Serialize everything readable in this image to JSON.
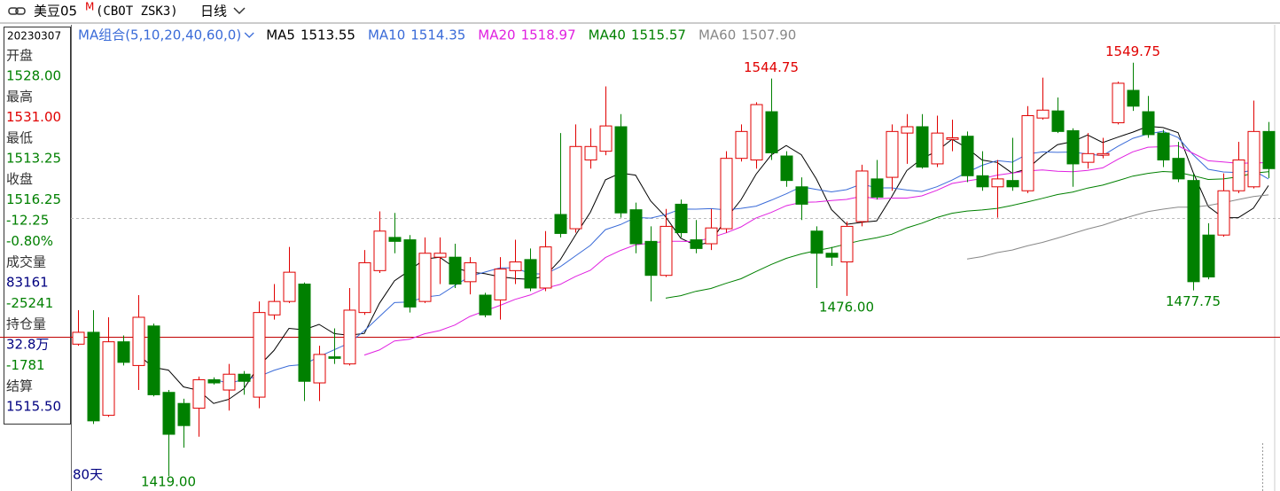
{
  "header": {
    "symbol": "美豆05",
    "marker": "M",
    "code": "(CBOT ZSK3)",
    "period": "日线"
  },
  "info": {
    "date": "20230307",
    "rows": [
      {
        "label": "开盘",
        "value": "1528.00",
        "color": "#008000"
      },
      {
        "label": "最高",
        "value": "1531.00",
        "color": "#e00000"
      },
      {
        "label": "最低",
        "value": "1513.25",
        "color": "#008000"
      },
      {
        "label": "收盘",
        "value": "1516.25",
        "color": "#008000"
      },
      {
        "value": "-12.25",
        "color": "#008000"
      },
      {
        "value": "-0.80%",
        "color": "#008000"
      },
      {
        "label": "成交量",
        "value": "83161",
        "color": "#000080"
      },
      {
        "value": "-25241",
        "color": "#008000"
      },
      {
        "label": "持仓量",
        "value": "32.8万",
        "color": "#000080"
      },
      {
        "value": "-1781",
        "color": "#008000"
      },
      {
        "label": "结算",
        "value": "1515.50",
        "color": "#000080"
      }
    ]
  },
  "chart_data": {
    "type": "candlestick",
    "title": "MA组合(5,10,20,40,60,0)",
    "span_label": "80天",
    "ylim": [
      1416,
      1555
    ],
    "up_color": "#e00000",
    "down_color": "#008000",
    "open": [
      1460.75,
      1464.5,
      1438.25,
      1461.5,
      1454,
      1466.5,
      1445.5,
      1442,
      1440.5,
      1449.5,
      1446.25,
      1451.25,
      1444,
      1470,
      1474.25,
      1479.75,
      1448.5,
      1456.75,
      1454.5,
      1470.75,
      1484,
      1494.5,
      1493.75,
      1474.25,
      1488.25,
      1488.25,
      1480.5,
      1476.25,
      1474.75,
      1484,
      1487.5,
      1478.5,
      1501.75,
      1497.25,
      1519,
      1521.75,
      1529.5,
      1503.25,
      1493.25,
      1482.5,
      1505,
      1493.75,
      1492.5,
      1497.25,
      1519.5,
      1519,
      1534.25,
      1520.25,
      1510.5,
      1496.5,
      1489.5,
      1486.75,
      1499.5,
      1513,
      1513.5,
      1527.5,
      1529.5,
      1517.75,
      1525.5,
      1526.5,
      1514,
      1510.5,
      1512.5,
      1509.25,
      1532.25,
      1534.5,
      1528.25,
      1518.25,
      1520.5,
      1530.75,
      1541,
      1534.25,
      1527.5,
      1519.5,
      1512.5,
      1495.25,
      1495.25,
      1509.25,
      1510.5,
      1528
    ],
    "high": [
      1471.5,
      1471.5,
      1469.25,
      1463.5,
      1476.25,
      1467.25,
      1446.25,
      1443.5,
      1450.5,
      1450.25,
      1454.5,
      1452.25,
      1474.25,
      1479.75,
      1491.5,
      1480.25,
      1460.25,
      1465.75,
      1478.5,
      1490.5,
      1502.75,
      1502.25,
      1495.25,
      1494.5,
      1494.5,
      1492.5,
      1488.25,
      1477,
      1488.25,
      1493.75,
      1491,
      1496.5,
      1527.5,
      1530.25,
      1529,
      1542.25,
      1533.5,
      1505.5,
      1498,
      1503.5,
      1506.5,
      1500,
      1503.5,
      1521.75,
      1530.25,
      1537.25,
      1544.75,
      1521.75,
      1513.5,
      1498,
      1491.5,
      1499.5,
      1517.5,
      1519,
      1530.25,
      1533.5,
      1533.5,
      1533,
      1531.75,
      1528,
      1521.75,
      1519,
      1526,
      1536,
      1545,
      1538.75,
      1529,
      1527.5,
      1526,
      1543.75,
      1549.75,
      1539.25,
      1528.5,
      1524.75,
      1514.75,
      1499,
      1514.75,
      1524.75,
      1537.75,
      1531
    ],
    "low": [
      1460.25,
      1435.5,
      1437.75,
      1454,
      1446.25,
      1444.25,
      1419,
      1428,
      1431.5,
      1448,
      1439.75,
      1444.75,
      1440.5,
      1468.5,
      1473.75,
      1442.75,
      1442.75,
      1454.5,
      1454,
      1470,
      1483.25,
      1489.5,
      1470.75,
      1473.75,
      1479.75,
      1478.5,
      1476.5,
      1469.25,
      1468.5,
      1479.75,
      1477.5,
      1477.5,
      1494.5,
      1496,
      1516.25,
      1520.5,
      1500.75,
      1489.5,
      1474.25,
      1482,
      1494.5,
      1489.5,
      1490.5,
      1496,
      1518.5,
      1516.25,
      1519,
      1510.5,
      1500,
      1478.5,
      1485.5,
      1476,
      1498,
      1506.5,
      1509.25,
      1517.75,
      1516.25,
      1516.75,
      1521.75,
      1512,
      1509.25,
      1500.75,
      1509.25,
      1508.5,
      1531.75,
      1527.5,
      1510.5,
      1516.25,
      1519.5,
      1530.25,
      1534.5,
      1526,
      1516.75,
      1512,
      1477.75,
      1481.25,
      1494.75,
      1508.5,
      1510,
      1513.25
    ],
    "close": [
      1464.5,
      1436.5,
      1461.5,
      1455,
      1469.25,
      1444.75,
      1432.25,
      1435,
      1449.5,
      1448.5,
      1451.25,
      1449,
      1470.75,
      1474.25,
      1483.5,
      1449,
      1457.5,
      1456.25,
      1471.5,
      1486.5,
      1496.5,
      1493.25,
      1472.5,
      1489.5,
      1489.5,
      1479.75,
      1486.5,
      1470,
      1484.5,
      1486.75,
      1478.5,
      1491.5,
      1495.75,
      1523.25,
      1523.25,
      1529.75,
      1502.25,
      1492.5,
      1482.5,
      1498,
      1496,
      1491,
      1497.5,
      1519.5,
      1528,
      1536.5,
      1521.25,
      1512.5,
      1505,
      1489.5,
      1488.25,
      1498,
      1515.5,
      1507.25,
      1528,
      1529.5,
      1516.75,
      1527.5,
      1526,
      1514,
      1510.5,
      1513,
      1510.5,
      1533,
      1534.75,
      1528,
      1517.75,
      1521,
      1521,
      1543.25,
      1536,
      1527,
      1519,
      1513,
      1480.5,
      1482,
      1509.25,
      1519,
      1528,
      1516.25
    ],
    "high_marks": [
      1544.75,
      1549.75
    ],
    "low_marks": [
      {
        "value": 1419,
        "label": "1419.00"
      },
      {
        "value": 1476,
        "label": "1476.00"
      },
      1477.75
    ],
    "ma": [
      {
        "name": "MA5",
        "value": 1513.55,
        "color": "#000000"
      },
      {
        "name": "MA10",
        "value": 1514.35,
        "color": "#3a6bd8"
      },
      {
        "name": "MA20",
        "value": 1518.97,
        "color": "#e020e0"
      },
      {
        "name": "MA40",
        "value": 1515.57,
        "color": "#008000"
      },
      {
        "name": "MA60",
        "value": 1507.9,
        "value_label": "1507.90",
        "color": "#888888"
      }
    ]
  }
}
